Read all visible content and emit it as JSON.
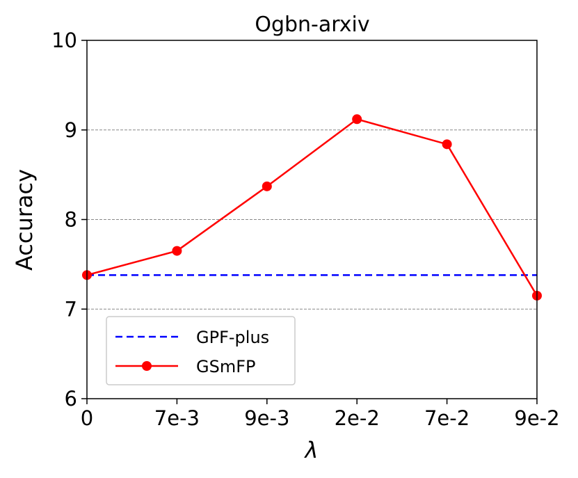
{
  "chart_data": {
    "type": "line",
    "title": "Ogbn-arxiv",
    "xlabel": "λ",
    "ylabel": "Accuracy",
    "categories": [
      "0",
      "7e-3",
      "9e-3",
      "2e-2",
      "7e-2",
      "9e-2"
    ],
    "ylim": [
      6,
      10
    ],
    "yticks": [
      "6",
      "7",
      "8",
      "9",
      "10"
    ],
    "grid": "horizontal dashed",
    "legend_position": "bottom-left",
    "series": [
      {
        "name": "GPF-plus",
        "style": "dashed",
        "color": "#0000ff",
        "values": [
          7.38,
          7.38,
          7.38,
          7.38,
          7.38,
          7.38
        ]
      },
      {
        "name": "GSmFP",
        "style": "solid-marker",
        "color": "#ff0000",
        "values": [
          7.38,
          7.65,
          8.37,
          9.12,
          8.84,
          7.15
        ]
      }
    ]
  }
}
